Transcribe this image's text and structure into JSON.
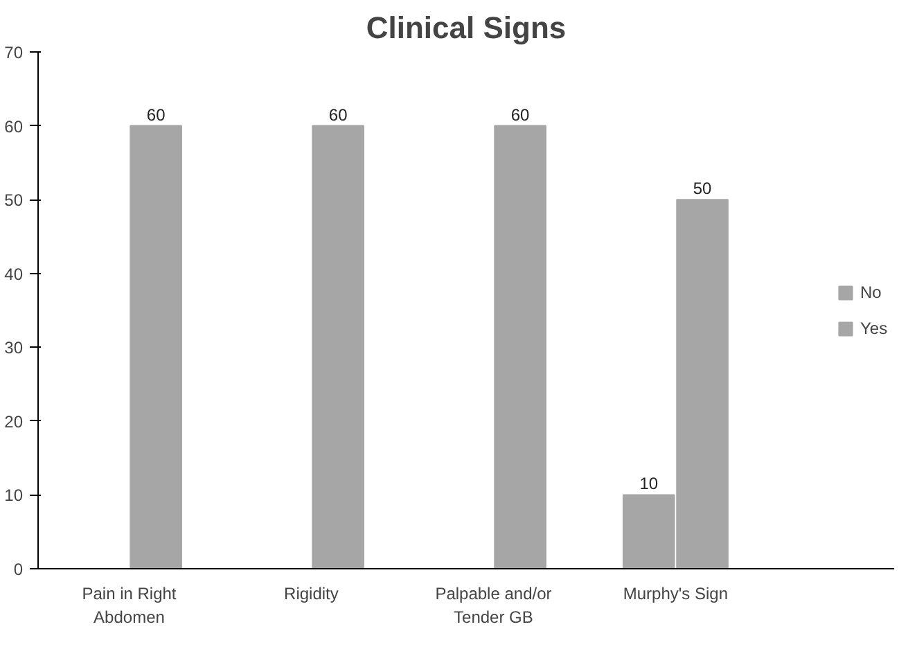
{
  "chart_data": {
    "type": "bar",
    "title": "Clinical Signs",
    "categories": [
      "Pain in Right\nAbdomen",
      "Rigidity",
      "Palpable and/or\nTender GB",
      "Murphy's Sign"
    ],
    "series": [
      {
        "name": "No",
        "color": "#a6a6a6",
        "values": [
          0,
          0,
          0,
          10
        ],
        "value_labels": [
          null,
          null,
          null,
          "10"
        ]
      },
      {
        "name": "Yes",
        "color": "#a6a6a6",
        "values": [
          60,
          60,
          60,
          50
        ],
        "value_labels": [
          "60",
          "60",
          "60",
          "50"
        ]
      }
    ],
    "ylim": [
      0,
      70
    ],
    "yticks": [
      0,
      10,
      20,
      30,
      40,
      50,
      60,
      70
    ],
    "grid": false,
    "legend": "right"
  }
}
